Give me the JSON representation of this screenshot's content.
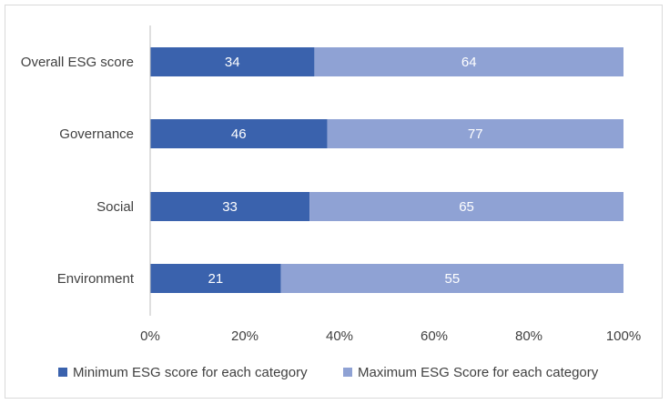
{
  "chart_data": {
    "type": "bar",
    "orientation": "horizontal",
    "stacked": "percent",
    "categories": [
      "Overall ESG score",
      "Governance",
      "Social",
      "Environment"
    ],
    "series": [
      {
        "name": "Minimum ESG score for each category",
        "values": [
          34,
          46,
          33,
          21
        ],
        "color": "#3a62ad"
      },
      {
        "name": "Maximum ESG Score for each category",
        "values": [
          64,
          77,
          65,
          55
        ],
        "color": "#8fa2d4"
      }
    ],
    "x_ticks": [
      "0%",
      "20%",
      "40%",
      "60%",
      "80%",
      "100%"
    ],
    "xlim": [
      0,
      100
    ],
    "grid": false,
    "legend_position": "bottom"
  }
}
